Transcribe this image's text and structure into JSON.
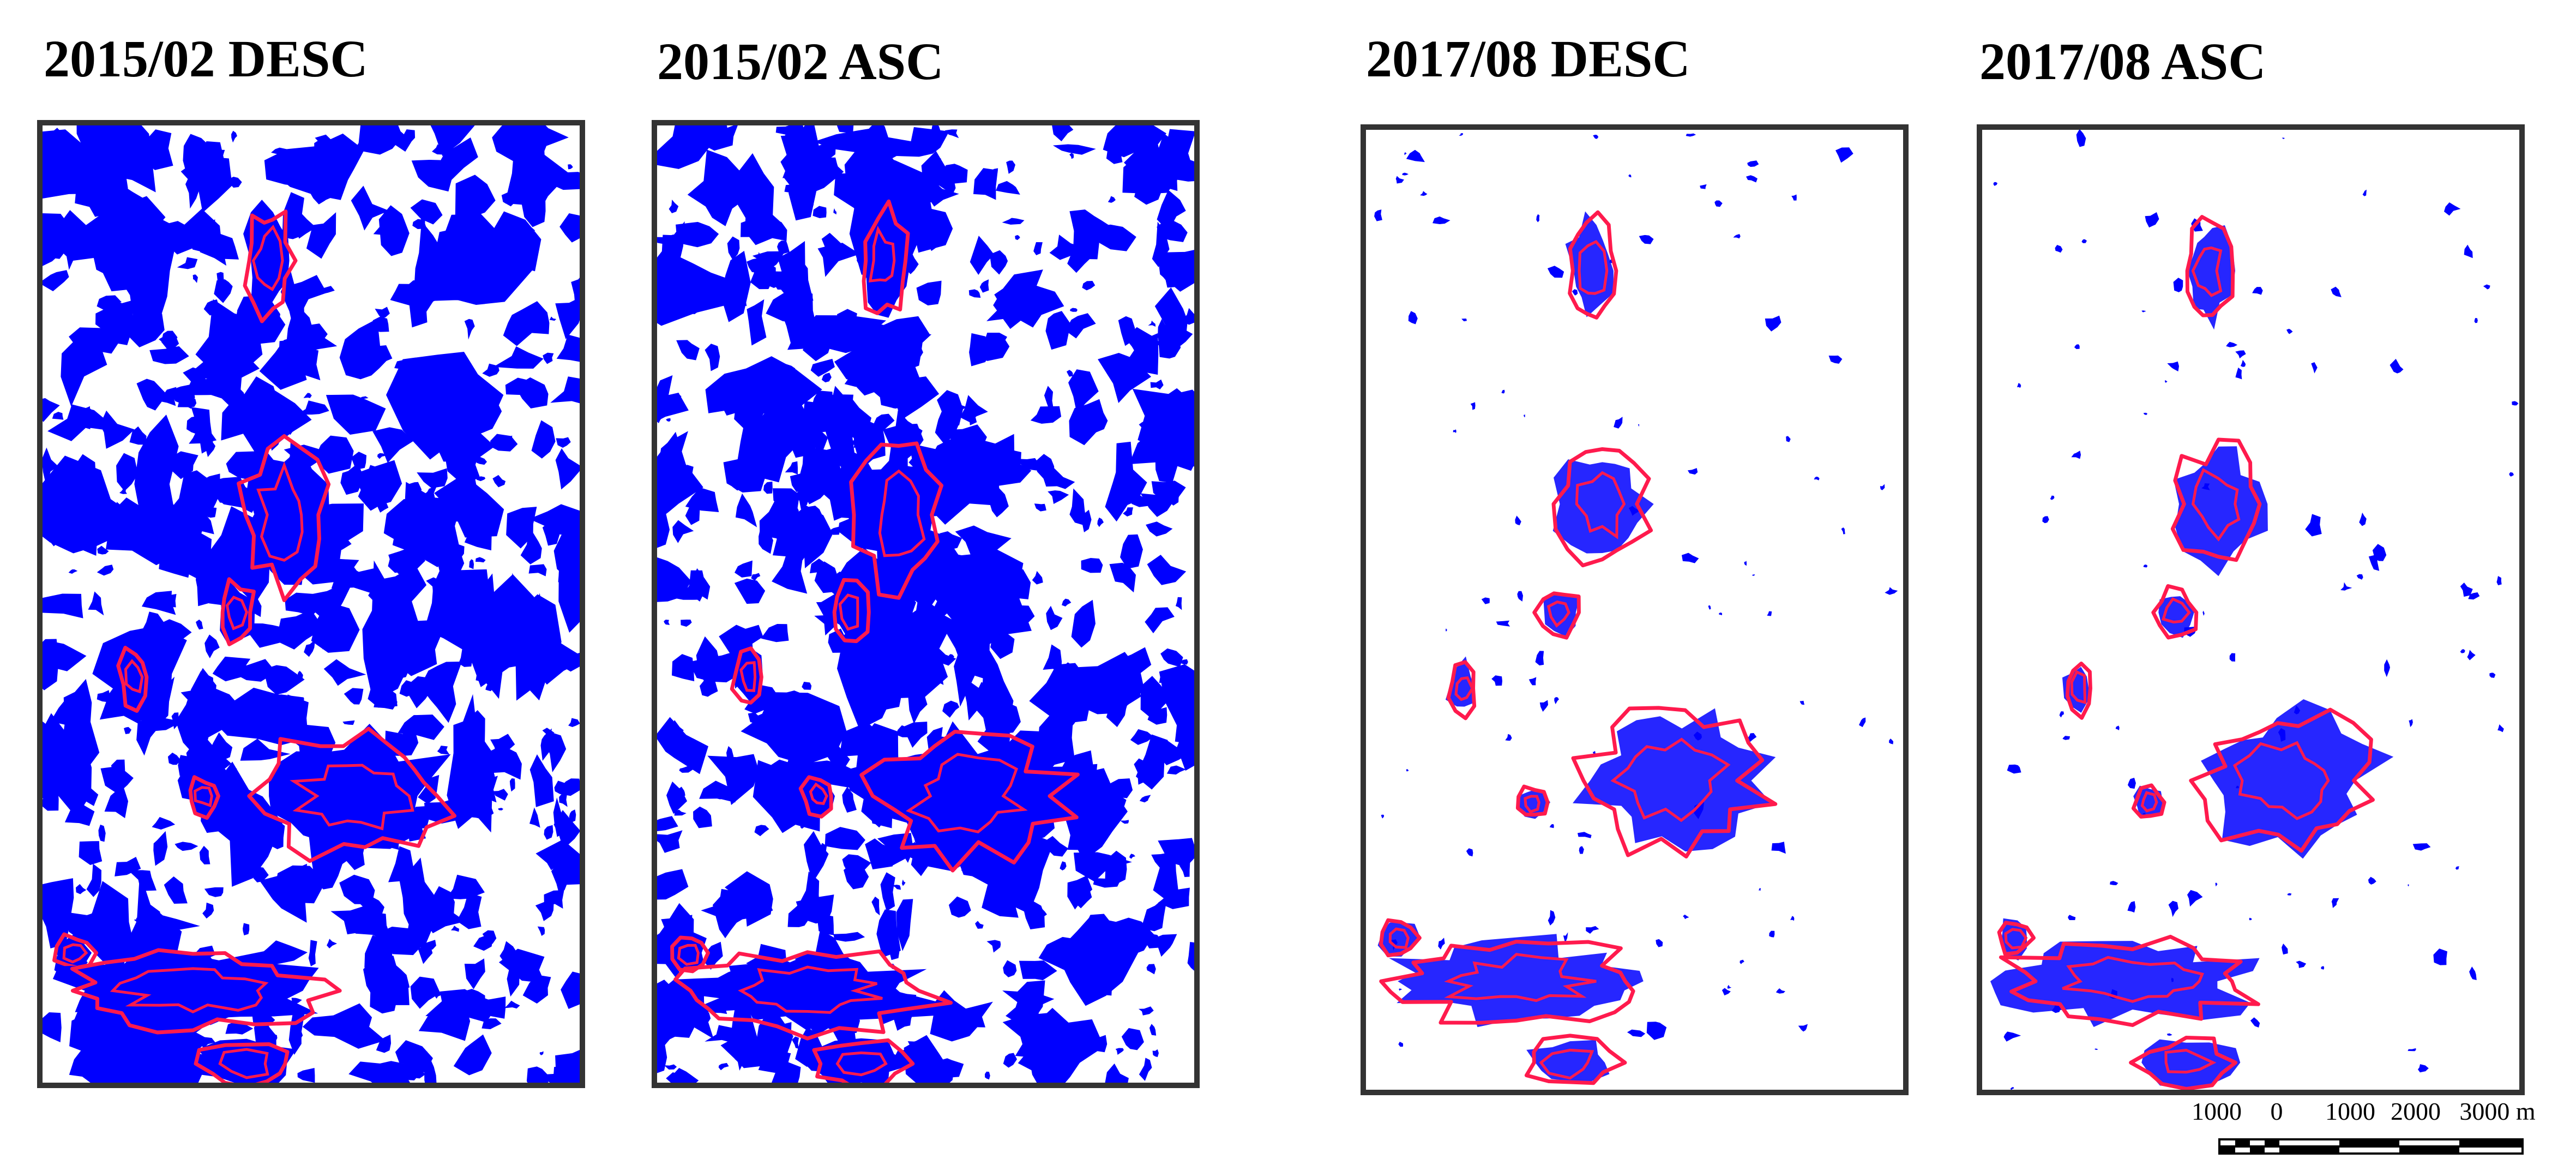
{
  "panels": [
    {
      "title": "2015/02 DESC",
      "density": "high"
    },
    {
      "title": "2015/02 ASC",
      "density": "high"
    },
    {
      "title": "2017/08 DESC",
      "density": "low"
    },
    {
      "title": "2017/08 ASC",
      "density": "low"
    }
  ],
  "scale_bar": {
    "labels": [
      "1000",
      "0",
      "1000",
      "2000",
      "3000 m"
    ]
  },
  "colors": {
    "water": "#0000ff",
    "outline": "#ff1a4d",
    "frame": "#333333",
    "background": "#ffffff"
  }
}
